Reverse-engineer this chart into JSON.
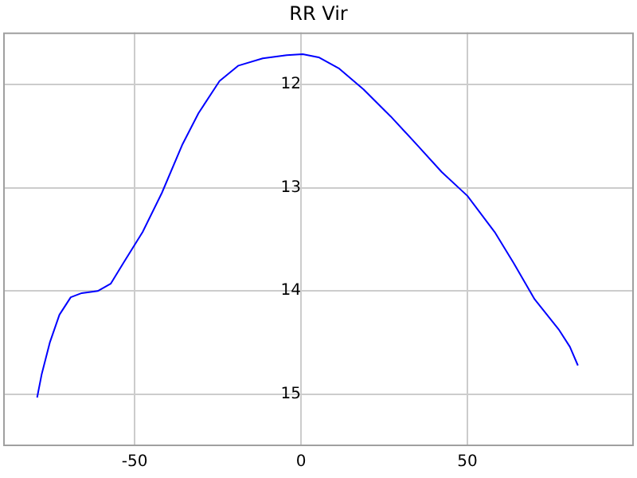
{
  "chart_data": {
    "type": "line",
    "title": "RR Vir",
    "x": [
      -79.3,
      -77.9,
      -75.5,
      -72.6,
      -69.2,
      -65.9,
      -61.1,
      -57.2,
      -53.4,
      -47.6,
      -41.8,
      -35.6,
      -30.8,
      -24.5,
      -18.8,
      -11.5,
      -4.3,
      0.5,
      5.3,
      11.5,
      18.8,
      26.9,
      34.1,
      42.3,
      50,
      58.2,
      63.9,
      70.2,
      77.4,
      80.8,
      83.2
    ],
    "series": [
      {
        "color": "#0000ff",
        "values": [
          15.03,
          14.8,
          14.5,
          14.23,
          14.06,
          14.02,
          14.0,
          13.93,
          13.73,
          13.43,
          13.05,
          12.58,
          12.28,
          11.97,
          11.82,
          11.75,
          11.72,
          11.71,
          11.74,
          11.85,
          12.05,
          12.31,
          12.56,
          12.85,
          13.08,
          13.43,
          13.73,
          14.08,
          14.37,
          14.54,
          14.72
        ]
      }
    ],
    "xlim": [
      -89.5,
      100
    ],
    "xticks": [
      -50,
      0,
      50
    ],
    "ylim": [
      15.5,
      11.5
    ],
    "yticks": [
      12,
      13,
      14,
      15
    ],
    "grid": true,
    "legend": false,
    "marker": "none",
    "line_style": "solid"
  }
}
